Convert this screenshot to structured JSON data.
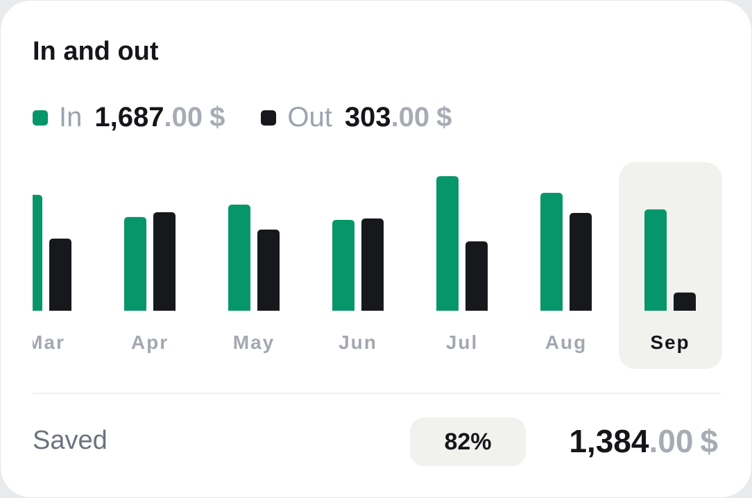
{
  "chart_data": {
    "type": "bar",
    "title": "In and out",
    "categories": [
      "Mar",
      "Apr",
      "May",
      "Jun",
      "Jul",
      "Aug",
      "Sep"
    ],
    "highlight": "Sep",
    "series": [
      {
        "name": "In",
        "color": "#079669",
        "values": [
          1929,
          1560,
          1767,
          1513,
          2240,
          1963,
          1687
        ]
      },
      {
        "name": "Out",
        "color": "#17181c",
        "values": [
          1201,
          1640,
          1351,
          1536,
          1155,
          1628,
          303
        ]
      }
    ],
    "totals": [
      {
        "whole": "1,687",
        "cents": ".00",
        "currency": "$"
      },
      {
        "whole": "303",
        "cents": ".00",
        "currency": "$"
      }
    ]
  },
  "footer": {
    "label": "Saved",
    "percent": "82%",
    "amount": {
      "whole": "1,384",
      "cents": ".00",
      "currency": "$"
    }
  }
}
